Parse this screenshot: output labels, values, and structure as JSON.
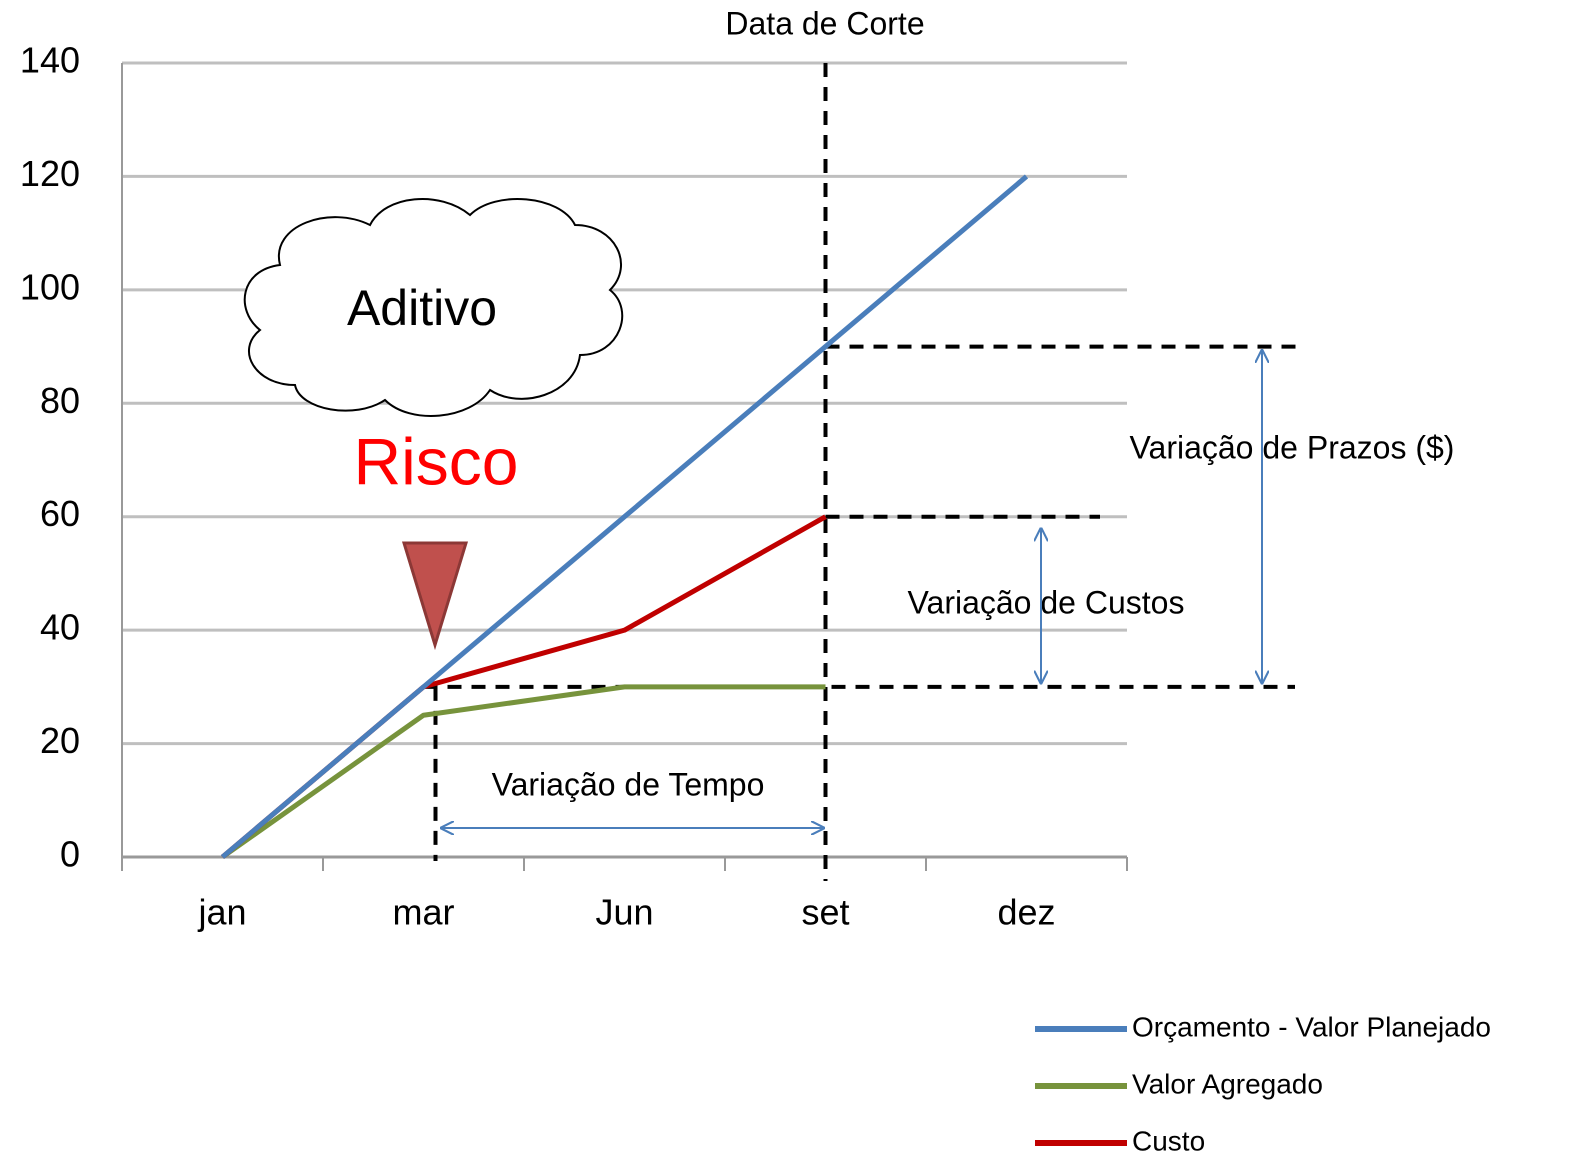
{
  "chart_data": {
    "type": "line",
    "categories": [
      "jan",
      "mar",
      "Jun",
      "set",
      "dez"
    ],
    "series": [
      {
        "name": "Orçamento - Valor Planejado",
        "color": "#4a7ebb",
        "values": [
          0,
          30,
          60,
          90,
          120
        ]
      },
      {
        "name": "Valor Agregado",
        "color": "#77933c",
        "values": [
          0,
          25,
          30,
          30,
          null
        ]
      },
      {
        "name": "Custo",
        "color": "#c00000",
        "values": [
          0,
          30,
          40,
          60,
          null
        ]
      }
    ],
    "ylim": [
      0,
      140
    ],
    "yticks": [
      0,
      20,
      40,
      60,
      80,
      100,
      120,
      140
    ],
    "grid": true,
    "legend": "bottom-right",
    "annotations": {
      "cutoff": "Data de Corte",
      "cloud": "Aditivo",
      "risk": "Risco",
      "schedule_variance": "Variação de Prazos ($)",
      "cost_variance": "Variação de Custos",
      "time_variance": "Variação de Tempo"
    }
  }
}
